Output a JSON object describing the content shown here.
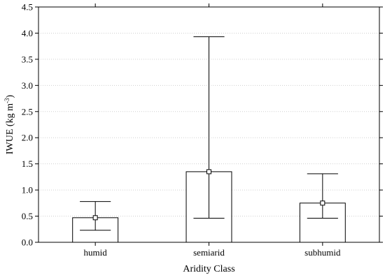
{
  "chart_data": {
    "type": "bar",
    "xlabel": "Aridity Class",
    "ylabel_main": "IWUE (kg m",
    "ylabel_sup": "-3",
    "ylabel_end": ")",
    "ylim": [
      0,
      4.5
    ],
    "y_ticks": [
      "0.0",
      "0.5",
      "1.0",
      "1.5",
      "2.0",
      "2.5",
      "3.0",
      "3.5",
      "4.0",
      "4.5"
    ],
    "grid": true,
    "categories": [
      "humid",
      "semiarid",
      "subhumid"
    ],
    "values": [
      0.47,
      1.35,
      0.75
    ],
    "error_low": [
      0.23,
      0.46,
      0.46
    ],
    "error_high": [
      0.78,
      3.93,
      1.31
    ],
    "colors": {
      "bar_fill": "#ffffff",
      "stroke": "#000000",
      "grid": "#cfcfcf"
    }
  }
}
